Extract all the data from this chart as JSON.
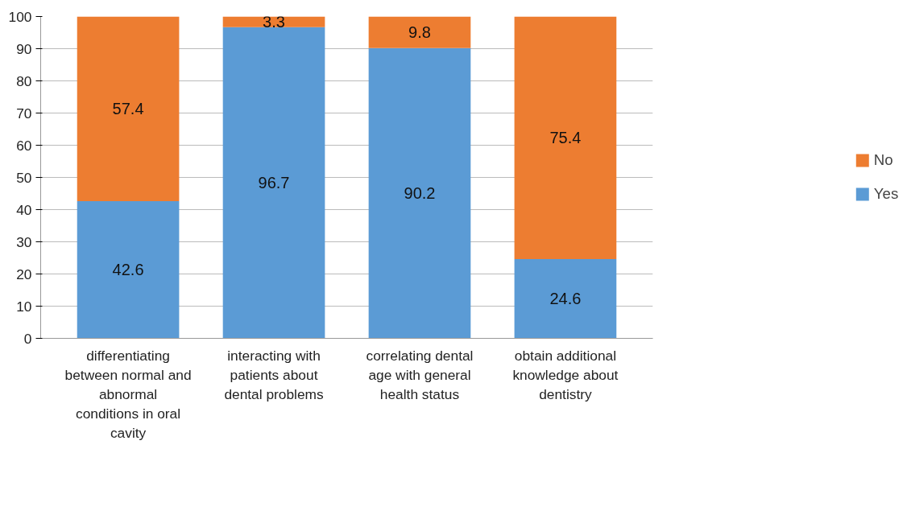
{
  "chart_data": {
    "type": "bar",
    "stacked": true,
    "categories": [
      "differentiating between normal and abnormal conditions in oral cavity",
      "interacting with patients about dental problems",
      "correlating dental age with general health status",
      "obtain additional knowledge about dentistry"
    ],
    "series": [
      {
        "name": "Yes",
        "color": "#5b9bd5",
        "values": [
          42.6,
          96.7,
          90.2,
          24.6
        ]
      },
      {
        "name": "No",
        "color": "#ed7d31",
        "values": [
          57.4,
          3.3,
          9.8,
          75.4
        ]
      }
    ],
    "ylim": [
      0,
      100
    ],
    "yticks": [
      0,
      10,
      20,
      30,
      40,
      50,
      60,
      70,
      80,
      90,
      100
    ],
    "grid": "y",
    "legend": "right",
    "data_labels": true
  }
}
